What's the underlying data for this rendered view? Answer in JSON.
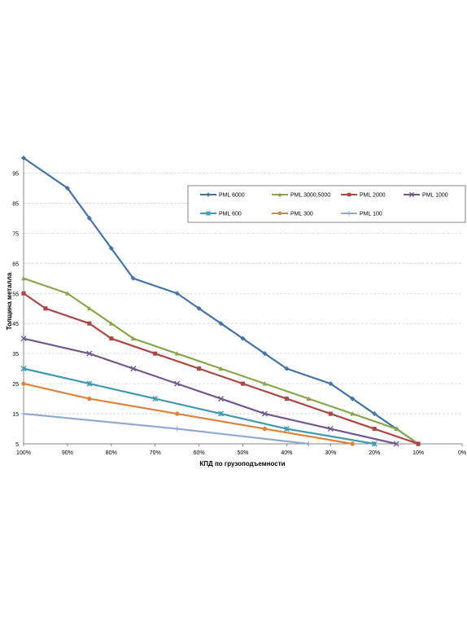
{
  "chart_data": {
    "type": "line",
    "xlabel": "КПД по грузоподъемности",
    "ylabel": "Толщина металла",
    "x_ticks": [
      100,
      90,
      80,
      70,
      60,
      50,
      40,
      30,
      20,
      10,
      0
    ],
    "x_tick_labels": [
      "100%",
      "90%",
      "80%",
      "70%",
      "60%",
      "50%",
      "40%",
      "30%",
      "20%",
      "10%",
      "0%"
    ],
    "xlim": [
      100,
      0
    ],
    "y_ticks": [
      5,
      15,
      25,
      35,
      45,
      55,
      65,
      75,
      85,
      95
    ],
    "y_tick_labels": [
      "5",
      "15",
      "25",
      "35",
      "45",
      "55",
      "65",
      "75",
      "85",
      "95"
    ],
    "ylim": [
      5,
      100
    ],
    "grid": "horizontal dashed",
    "legend_position": "top-right",
    "series": [
      {
        "name": "PML 6000",
        "color": "#4572a7",
        "marker": "diamond",
        "points": [
          [
            100,
            100
          ],
          [
            90,
            90
          ],
          [
            85,
            80
          ],
          [
            80,
            70
          ],
          [
            75,
            60
          ],
          [
            65,
            55
          ],
          [
            60,
            50
          ],
          [
            55,
            45
          ],
          [
            50,
            40
          ],
          [
            45,
            35
          ],
          [
            40,
            30
          ],
          [
            30,
            25
          ],
          [
            25,
            20
          ],
          [
            20,
            15
          ],
          [
            15,
            10
          ],
          [
            10,
            5
          ]
        ]
      },
      {
        "name": "PML 3000,5000",
        "color": "#89a54e",
        "marker": "triangle",
        "points": [
          [
            100,
            60
          ],
          [
            90,
            55
          ],
          [
            85,
            50
          ],
          [
            80,
            45
          ],
          [
            75,
            40
          ],
          [
            65,
            35
          ],
          [
            55,
            30
          ],
          [
            45,
            25
          ],
          [
            35,
            20
          ],
          [
            25,
            15
          ],
          [
            15,
            10
          ],
          [
            10,
            5
          ]
        ]
      },
      {
        "name": "PML 2000",
        "color": "#aa4643",
        "marker": "square",
        "points": [
          [
            100,
            55
          ],
          [
            95,
            50
          ],
          [
            85,
            45
          ],
          [
            80,
            40
          ],
          [
            70,
            35
          ],
          [
            60,
            30
          ],
          [
            50,
            25
          ],
          [
            40,
            20
          ],
          [
            30,
            15
          ],
          [
            20,
            10
          ],
          [
            10,
            5
          ]
        ]
      },
      {
        "name": "PML 1000",
        "color": "#71588f",
        "marker": "x",
        "points": [
          [
            100,
            40
          ],
          [
            85,
            35
          ],
          [
            75,
            30
          ],
          [
            65,
            25
          ],
          [
            55,
            20
          ],
          [
            45,
            15
          ],
          [
            30,
            10
          ],
          [
            15,
            5
          ]
        ]
      },
      {
        "name": "PML 600",
        "color": "#4198af",
        "marker": "star",
        "points": [
          [
            100,
            30
          ],
          [
            85,
            25
          ],
          [
            70,
            20
          ],
          [
            55,
            15
          ],
          [
            40,
            10
          ],
          [
            20,
            5
          ]
        ]
      },
      {
        "name": "PML 300",
        "color": "#db843d",
        "marker": "circle",
        "points": [
          [
            100,
            25
          ],
          [
            85,
            20
          ],
          [
            65,
            15
          ],
          [
            45,
            10
          ],
          [
            25,
            5
          ]
        ]
      },
      {
        "name": "PML 100",
        "color": "#93a9cf",
        "marker": "plus",
        "points": [
          [
            100,
            15
          ],
          [
            65,
            10
          ],
          [
            35,
            5
          ]
        ]
      }
    ]
  }
}
